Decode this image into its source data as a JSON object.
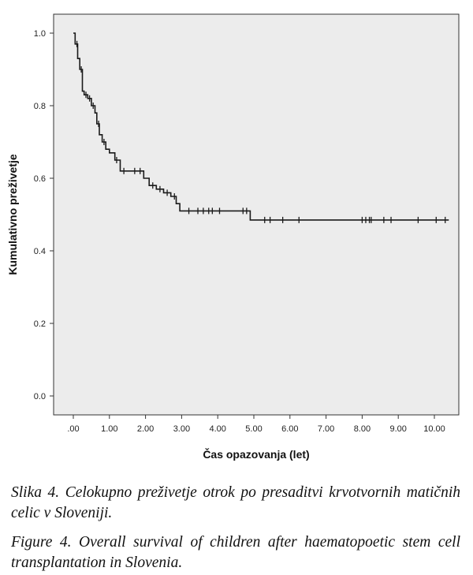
{
  "chart_data": {
    "type": "line",
    "title": "",
    "xlabel": "Čas opazovanja (let)",
    "ylabel": "Kumulativno preživetje",
    "xlim": [
      0,
      10.4
    ],
    "ylim": [
      0,
      1.0
    ],
    "xticks": [
      ".00",
      "1.00",
      "2.00",
      "3.00",
      "4.00",
      "5.00",
      "6.00",
      "7.00",
      "8.00",
      "9.00",
      "10.00"
    ],
    "yticks": [
      "0.0",
      "0.2",
      "0.4",
      "0.6",
      "0.8",
      "1.0"
    ],
    "step": true,
    "grid": false,
    "plot_background": "#ececec",
    "line_color": "#1a1a1a",
    "series": [
      {
        "x": [
          0,
          0.05,
          0.12,
          0.18,
          0.25,
          0.3,
          0.4,
          0.5,
          0.6,
          0.65,
          0.72,
          0.8,
          0.9,
          1.0,
          1.15,
          1.3,
          1.5,
          1.8,
          1.95,
          2.1,
          2.3,
          2.5,
          2.7,
          2.85,
          2.95,
          4.9
        ],
        "y": [
          1.0,
          0.97,
          0.93,
          0.9,
          0.84,
          0.83,
          0.82,
          0.8,
          0.78,
          0.75,
          0.72,
          0.7,
          0.68,
          0.67,
          0.65,
          0.62,
          0.62,
          0.62,
          0.6,
          0.58,
          0.57,
          0.56,
          0.55,
          0.53,
          0.51,
          0.485
        ],
        "x_end": 10.4,
        "censored": [
          {
            "x": 0.1,
            "y": 0.97
          },
          {
            "x": 0.22,
            "y": 0.9
          },
          {
            "x": 0.35,
            "y": 0.83
          },
          {
            "x": 0.45,
            "y": 0.82
          },
          {
            "x": 0.55,
            "y": 0.8
          },
          {
            "x": 0.7,
            "y": 0.75
          },
          {
            "x": 0.85,
            "y": 0.7
          },
          {
            "x": 1.2,
            "y": 0.65
          },
          {
            "x": 1.4,
            "y": 0.62
          },
          {
            "x": 1.7,
            "y": 0.62
          },
          {
            "x": 1.85,
            "y": 0.62
          },
          {
            "x": 2.2,
            "y": 0.58
          },
          {
            "x": 2.4,
            "y": 0.57
          },
          {
            "x": 2.6,
            "y": 0.56
          },
          {
            "x": 2.8,
            "y": 0.55
          },
          {
            "x": 3.2,
            "y": 0.51
          },
          {
            "x": 3.45,
            "y": 0.51
          },
          {
            "x": 3.6,
            "y": 0.51
          },
          {
            "x": 3.75,
            "y": 0.51
          },
          {
            "x": 3.85,
            "y": 0.51
          },
          {
            "x": 4.05,
            "y": 0.51
          },
          {
            "x": 4.7,
            "y": 0.51
          },
          {
            "x": 4.8,
            "y": 0.51
          },
          {
            "x": 5.3,
            "y": 0.485
          },
          {
            "x": 5.45,
            "y": 0.485
          },
          {
            "x": 5.8,
            "y": 0.485
          },
          {
            "x": 6.25,
            "y": 0.485
          },
          {
            "x": 8.0,
            "y": 0.485
          },
          {
            "x": 8.1,
            "y": 0.485
          },
          {
            "x": 8.2,
            "y": 0.485
          },
          {
            "x": 8.25,
            "y": 0.485
          },
          {
            "x": 8.6,
            "y": 0.485
          },
          {
            "x": 8.8,
            "y": 0.485
          },
          {
            "x": 9.55,
            "y": 0.485
          },
          {
            "x": 10.05,
            "y": 0.485
          },
          {
            "x": 10.3,
            "y": 0.485
          }
        ]
      }
    ]
  },
  "captions": {
    "slovenian": "Slika 4. Celokupno preživetje otrok po presaditvi krvotvornih matičnih celic v Sloveniji.",
    "english": "Figure 4. Overall survival of children after haematopoetic stem cell transplantation in Slovenia."
  }
}
